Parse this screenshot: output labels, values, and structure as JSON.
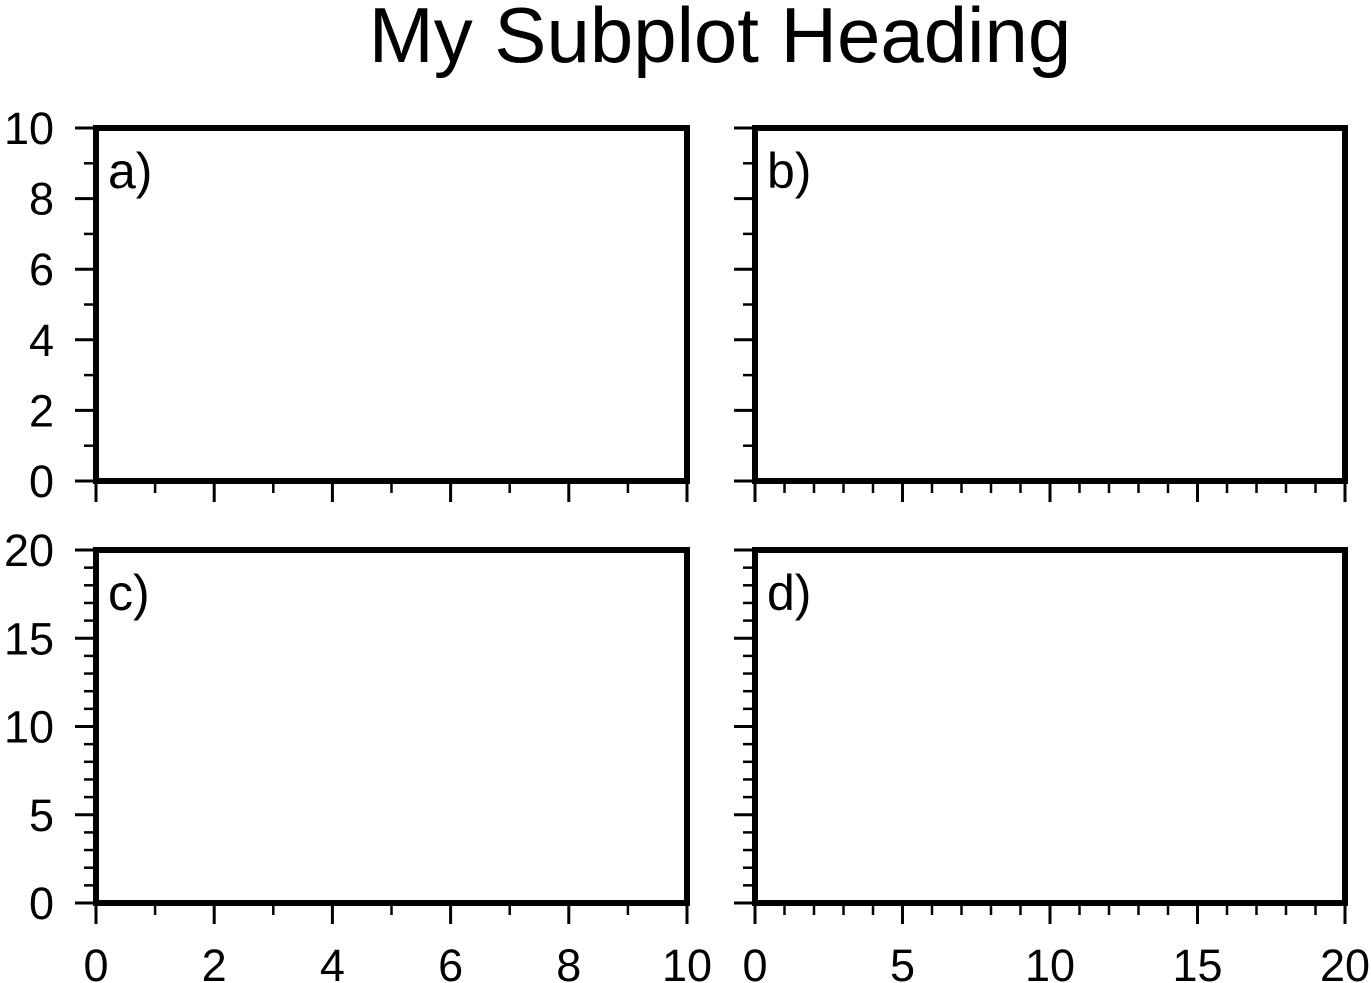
{
  "title": "My Subplot Heading",
  "chart_data": [
    {
      "type": "scatter",
      "panel_tag": "a)",
      "xlim": [
        0,
        10
      ],
      "ylim": [
        0,
        10
      ],
      "x_major_ticks": [
        0,
        2,
        4,
        6,
        8,
        10
      ],
      "x_minor_ticks": [
        1,
        3,
        5,
        7,
        9
      ],
      "x_tick_labels": [],
      "y_major_ticks": [
        0,
        2,
        4,
        6,
        8,
        10
      ],
      "y_minor_ticks": [
        1,
        3,
        5,
        7,
        9
      ],
      "y_tick_labels": [
        "0",
        "2",
        "4",
        "6",
        "8",
        "10"
      ],
      "series": [],
      "grid": false
    },
    {
      "type": "scatter",
      "panel_tag": "b)",
      "xlim": [
        0,
        20
      ],
      "ylim": [
        0,
        10
      ],
      "x_major_ticks": [
        0,
        5,
        10,
        15,
        20
      ],
      "x_minor_ticks": [
        1,
        2,
        3,
        4,
        6,
        7,
        8,
        9,
        11,
        12,
        13,
        14,
        16,
        17,
        18,
        19
      ],
      "x_tick_labels": [],
      "y_major_ticks": [
        0,
        2,
        4,
        6,
        8,
        10
      ],
      "y_minor_ticks": [
        1,
        3,
        5,
        7,
        9
      ],
      "y_tick_labels": [],
      "series": [],
      "grid": false
    },
    {
      "type": "scatter",
      "panel_tag": "c)",
      "xlim": [
        0,
        10
      ],
      "ylim": [
        0,
        20
      ],
      "x_major_ticks": [
        0,
        2,
        4,
        6,
        8,
        10
      ],
      "x_minor_ticks": [
        1,
        3,
        5,
        7,
        9
      ],
      "x_tick_labels": [
        "0",
        "2",
        "4",
        "6",
        "8",
        "10"
      ],
      "y_major_ticks": [
        0,
        5,
        10,
        15,
        20
      ],
      "y_minor_ticks": [
        1,
        2,
        3,
        4,
        6,
        7,
        8,
        9,
        11,
        12,
        13,
        14,
        16,
        17,
        18,
        19
      ],
      "y_tick_labels": [
        "0",
        "5",
        "10",
        "15",
        "20"
      ],
      "series": [],
      "grid": false
    },
    {
      "type": "scatter",
      "panel_tag": "d)",
      "xlim": [
        0,
        20
      ],
      "ylim": [
        0,
        20
      ],
      "x_major_ticks": [
        0,
        5,
        10,
        15,
        20
      ],
      "x_minor_ticks": [
        1,
        2,
        3,
        4,
        6,
        7,
        8,
        9,
        11,
        12,
        13,
        14,
        16,
        17,
        18,
        19
      ],
      "x_tick_labels": [
        "0",
        "5",
        "10",
        "15",
        "20"
      ],
      "y_major_ticks": [
        0,
        5,
        10,
        15,
        20
      ],
      "y_minor_ticks": [
        1,
        2,
        3,
        4,
        6,
        7,
        8,
        9,
        11,
        12,
        13,
        14,
        16,
        17,
        18,
        19
      ],
      "y_tick_labels": [],
      "series": [],
      "grid": false
    }
  ]
}
